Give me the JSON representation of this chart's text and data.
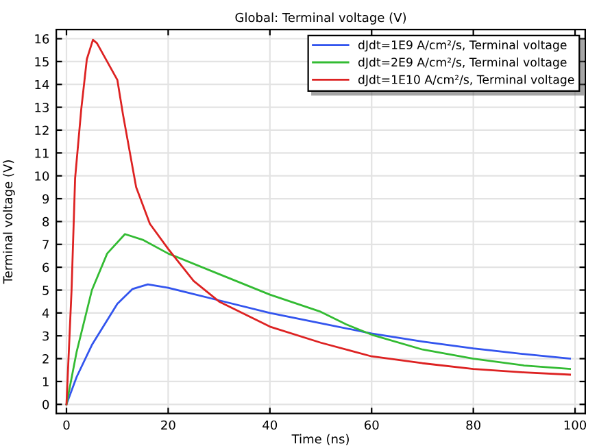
{
  "chart_data": {
    "type": "line",
    "title": "Global: Terminal voltage (V)",
    "xlabel": "Time (ns)",
    "ylabel": "Terminal voltage (V)",
    "xlim": [
      -2,
      102
    ],
    "ylim": [
      -0.4,
      16.4
    ],
    "xticks": [
      0,
      20,
      40,
      60,
      80,
      100
    ],
    "yticks": [
      0,
      1,
      2,
      3,
      4,
      5,
      6,
      7,
      8,
      9,
      10,
      11,
      12,
      13,
      14,
      15,
      16
    ],
    "grid": true,
    "legend": "top right",
    "marker": "none",
    "line_style": "solid",
    "series": [
      {
        "name": "dJdt=1E9 A/cm²/s, Terminal voltage",
        "color": "#3355ee",
        "x": [
          0,
          2,
          5,
          10,
          13,
          16,
          20,
          30,
          40,
          50,
          60,
          70,
          80,
          90,
          99
        ],
        "values": [
          0,
          1.2,
          2.6,
          4.4,
          5.05,
          5.25,
          5.1,
          4.55,
          4.0,
          3.55,
          3.1,
          2.75,
          2.45,
          2.2,
          2.0
        ]
      },
      {
        "name": "dJdt=2E9 A/cm²/s, Terminal voltage",
        "color": "#33bb33",
        "x": [
          0,
          2,
          5,
          8,
          11.5,
          15,
          20,
          30,
          40,
          48,
          50,
          55,
          60,
          70,
          80,
          90,
          99
        ],
        "values": [
          0,
          2.3,
          5.0,
          6.6,
          7.45,
          7.2,
          6.6,
          5.7,
          4.8,
          4.2,
          4.05,
          3.5,
          3.05,
          2.4,
          2.0,
          1.7,
          1.55
        ]
      },
      {
        "name": "dJdt=1E10 A/cm²/s, Terminal voltage",
        "color": "#dd2222",
        "x": [
          0,
          1,
          1.7,
          2.9,
          4,
          5.2,
          6,
          10,
          11.1,
          13.7,
          16.4,
          20,
          25,
          30,
          40,
          50,
          60,
          70,
          80,
          90,
          99
        ],
        "values": [
          0,
          5,
          9.9,
          12.9,
          15.1,
          15.95,
          15.8,
          14.2,
          12.7,
          9.5,
          7.9,
          6.8,
          5.4,
          4.5,
          3.4,
          2.7,
          2.1,
          1.8,
          1.55,
          1.4,
          1.3
        ]
      }
    ]
  }
}
